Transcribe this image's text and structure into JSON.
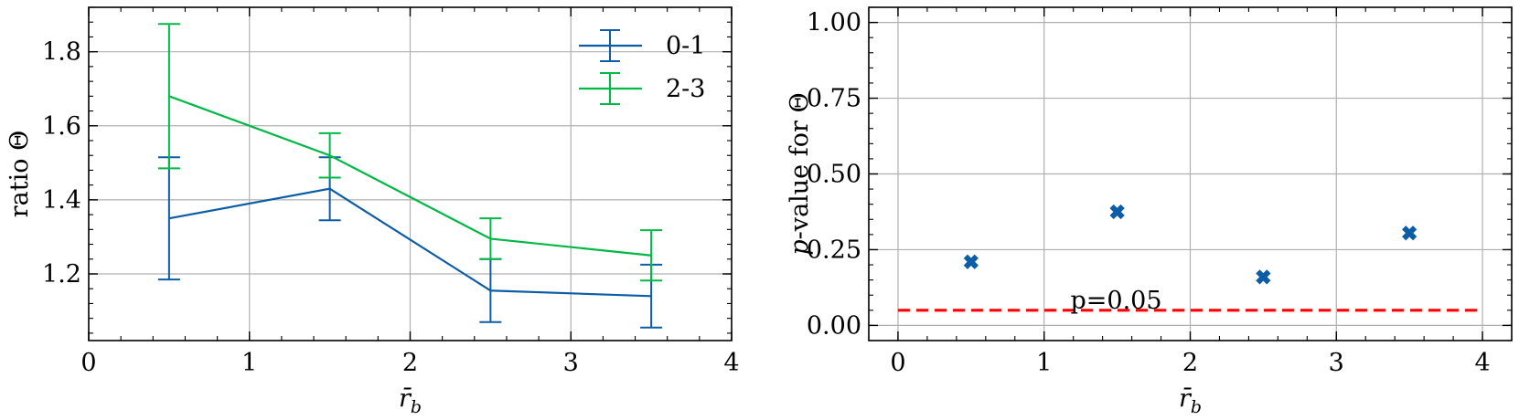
{
  "colors": {
    "series_0_1": "#0c5da5",
    "series_2_3": "#00b945",
    "threshold": "#ff0000",
    "grid": "#b0b0b0"
  },
  "chart_data": [
    {
      "type": "line",
      "errorbars": true,
      "xlabel": "r̄",
      "xlabel_sub": "b",
      "ylabel": "ratio Θ",
      "xlim": [
        0,
        4
      ],
      "ylim": [
        1.02,
        1.92
      ],
      "xticks": [
        0,
        1,
        2,
        3,
        4
      ],
      "xtick_labels": [
        "0",
        "1",
        "2",
        "3",
        "4"
      ],
      "yticks": [
        1.2,
        1.4,
        1.6,
        1.8
      ],
      "ytick_labels": [
        "1.2",
        "1.4",
        "1.6",
        "1.8"
      ],
      "grid": true,
      "legend_position": "top-right",
      "series": [
        {
          "name": "0-1",
          "color": "#0c5da5",
          "x": [
            0.5,
            1.5,
            2.5,
            3.5
          ],
          "y": [
            1.35,
            1.43,
            1.155,
            1.14
          ],
          "err": [
            0.165,
            0.085,
            0.085,
            0.085
          ]
        },
        {
          "name": "2-3",
          "color": "#00b945",
          "x": [
            0.5,
            1.5,
            2.5,
            3.5
          ],
          "y": [
            1.68,
            1.52,
            1.295,
            1.25
          ],
          "err": [
            0.195,
            0.06,
            0.055,
            0.068
          ]
        }
      ]
    },
    {
      "type": "scatter",
      "xlabel": "r̄",
      "xlabel_sub": "b",
      "ylabel": "p-value for Θ",
      "xlim": [
        -0.2,
        4.2
      ],
      "ylim": [
        -0.05,
        1.05
      ],
      "xticks": [
        0,
        1,
        2,
        3,
        4
      ],
      "xtick_labels": [
        "0",
        "1",
        "2",
        "3",
        "4"
      ],
      "yticks": [
        0.0,
        0.25,
        0.5,
        0.75,
        1.0
      ],
      "ytick_labels": [
        "0.00",
        "0.25",
        "0.50",
        "0.75",
        "1.00"
      ],
      "grid": true,
      "series": [
        {
          "color": "#0c5da5",
          "marker": "X",
          "x": [
            0.5,
            1.5,
            2.5,
            3.5
          ],
          "y": [
            0.21,
            0.375,
            0.16,
            0.305
          ]
        }
      ],
      "threshold": {
        "y": 0.05,
        "x": [
          0,
          4
        ],
        "label": "p=0.05",
        "label_x": 1.18,
        "color": "#ff0000",
        "style": "dashed"
      }
    }
  ]
}
